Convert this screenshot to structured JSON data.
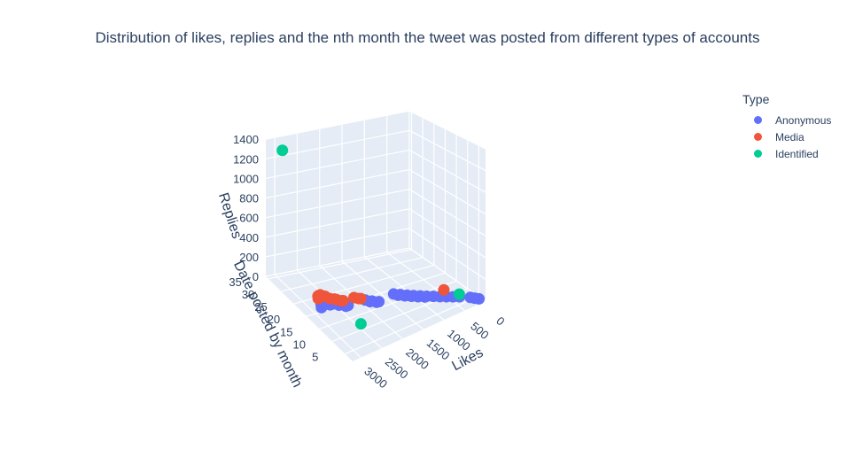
{
  "chart_data": {
    "type": "scatter3d",
    "title": "Distribution of likes, replies and the nth month the tweet was posted from different types of accounts",
    "xlabel": "Likes",
    "ylabel": "Date posted by month",
    "zlabel": "Replies",
    "x_ticks": [
      "0",
      "500",
      "1000",
      "1500",
      "2000",
      "2500",
      "3000"
    ],
    "y_ticks": [
      "5",
      "10",
      "15",
      "20",
      "25",
      "30",
      "35"
    ],
    "z_ticks": [
      "0",
      "200",
      "400",
      "600",
      "800",
      "1000",
      "1200",
      "1400"
    ],
    "xlim": [
      0,
      3200
    ],
    "ylim": [
      2,
      36
    ],
    "zlim": [
      0,
      1400
    ],
    "legend_title": "Type",
    "legend_position": "top-right",
    "series": [
      {
        "name": "Anonymous",
        "color": "#636efa",
        "points": [
          {
            "x": 2700,
            "y": 24,
            "z": 20
          },
          {
            "x": 2700,
            "y": 23,
            "z": 15
          },
          {
            "x": 2650,
            "y": 22,
            "z": 18
          },
          {
            "x": 2600,
            "y": 22,
            "z": 12
          },
          {
            "x": 2600,
            "y": 21,
            "z": 10
          },
          {
            "x": 2550,
            "y": 21,
            "z": 14
          },
          {
            "x": 2500,
            "y": 21,
            "z": 8
          },
          {
            "x": 2450,
            "y": 20,
            "z": 10
          },
          {
            "x": 2400,
            "y": 20,
            "z": 12
          },
          {
            "x": 2750,
            "y": 22,
            "z": 10
          },
          {
            "x": 2800,
            "y": 21,
            "z": 9
          },
          {
            "x": 2350,
            "y": 19,
            "z": 8
          },
          {
            "x": 2300,
            "y": 19,
            "z": 10
          },
          {
            "x": 1900,
            "y": 19,
            "z": 8
          },
          {
            "x": 1850,
            "y": 18,
            "z": 6
          },
          {
            "x": 1800,
            "y": 18,
            "z": 5
          },
          {
            "x": 1750,
            "y": 17,
            "z": 6
          },
          {
            "x": 1700,
            "y": 17,
            "z": 5
          },
          {
            "x": 1300,
            "y": 18,
            "z": 5
          },
          {
            "x": 1250,
            "y": 17,
            "z": 4
          },
          {
            "x": 1200,
            "y": 17,
            "z": 4
          },
          {
            "x": 1150,
            "y": 16,
            "z": 3
          },
          {
            "x": 1100,
            "y": 16,
            "z": 3
          },
          {
            "x": 1050,
            "y": 15,
            "z": 3
          },
          {
            "x": 1000,
            "y": 15,
            "z": 2
          },
          {
            "x": 950,
            "y": 14,
            "z": 2
          },
          {
            "x": 900,
            "y": 14,
            "z": 2
          },
          {
            "x": 850,
            "y": 13,
            "z": 2
          },
          {
            "x": 800,
            "y": 13,
            "z": 2
          },
          {
            "x": 700,
            "y": 12,
            "z": 2
          },
          {
            "x": 600,
            "y": 11,
            "z": 1
          },
          {
            "x": 500,
            "y": 10,
            "z": 1
          },
          {
            "x": 400,
            "y": 9,
            "z": 1
          },
          {
            "x": 300,
            "y": 8,
            "z": 1
          },
          {
            "x": 150,
            "y": 6,
            "z": 1
          },
          {
            "x": 100,
            "y": 5,
            "z": 1
          },
          {
            "x": 50,
            "y": 4,
            "z": 1
          }
        ]
      },
      {
        "name": "Media",
        "color": "#ef553b",
        "points": [
          {
            "x": 2700,
            "y": 24,
            "z": 15
          },
          {
            "x": 2650,
            "y": 25,
            "z": 12
          },
          {
            "x": 2600,
            "y": 25,
            "z": 18
          },
          {
            "x": 2550,
            "y": 24,
            "z": 20
          },
          {
            "x": 2500,
            "y": 23,
            "z": 15
          },
          {
            "x": 2450,
            "y": 22,
            "z": 25
          },
          {
            "x": 2400,
            "y": 22,
            "z": 14
          },
          {
            "x": 2350,
            "y": 21,
            "z": 18
          },
          {
            "x": 2300,
            "y": 21,
            "z": 12
          },
          {
            "x": 2050,
            "y": 21,
            "z": 10
          },
          {
            "x": 2000,
            "y": 20,
            "z": 15
          },
          {
            "x": 1950,
            "y": 20,
            "z": 8
          },
          {
            "x": 400,
            "y": 13,
            "z": 3
          }
        ]
      },
      {
        "name": "Identified",
        "color": "#00cc96",
        "points": [
          {
            "x": 3000,
            "y": 33,
            "z": 1330
          },
          {
            "x": 3000,
            "y": 2,
            "z": 310
          },
          {
            "x": 250,
            "y": 9,
            "z": 2
          }
        ]
      }
    ]
  }
}
